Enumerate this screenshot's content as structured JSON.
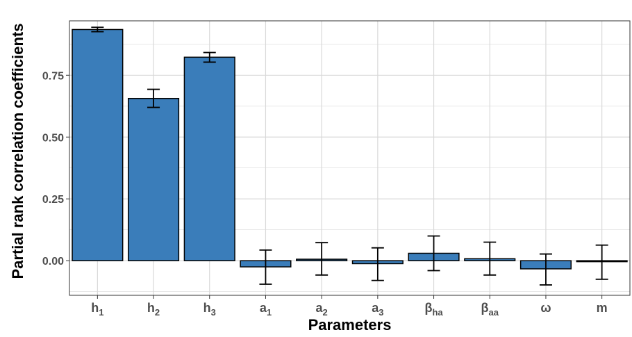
{
  "chart_data": {
    "type": "bar",
    "xlabel": "Parameters",
    "ylabel": "Partial rank correlation coefficients",
    "ylim": [
      -0.14,
      0.97
    ],
    "yticks": [
      "0.00",
      "0.25",
      "0.50",
      "0.75"
    ],
    "ytick_values": [
      0.0,
      0.25,
      0.5,
      0.75
    ],
    "grid": true,
    "categories": [
      {
        "base": "h",
        "sub": "1",
        "bold": true
      },
      {
        "base": "h",
        "sub": "2",
        "bold": true
      },
      {
        "base": "h",
        "sub": "3",
        "bold": true
      },
      {
        "base": "a",
        "sub": "1",
        "bold": true
      },
      {
        "base": "a",
        "sub": "2",
        "bold": true
      },
      {
        "base": "a",
        "sub": "3",
        "bold": true
      },
      {
        "base": "β",
        "sub": "ha",
        "bold": false
      },
      {
        "base": "β",
        "sub": "aa",
        "bold": false
      },
      {
        "base": "ω",
        "sub": "",
        "bold": false
      },
      {
        "base": "m",
        "sub": "",
        "bold": true
      }
    ],
    "values": [
      0.935,
      0.656,
      0.823,
      -0.025,
      0.006,
      -0.012,
      0.03,
      0.008,
      -0.033,
      -0.004
    ],
    "error_low": [
      0.926,
      0.62,
      0.803,
      -0.095,
      -0.058,
      -0.08,
      -0.04,
      -0.058,
      -0.098,
      -0.075
    ],
    "error_high": [
      0.944,
      0.693,
      0.842,
      0.043,
      0.073,
      0.052,
      0.1,
      0.075,
      0.027,
      0.063
    ],
    "bar_color": "#3a7dba",
    "bar_edge_color": "#000000",
    "grid_color": "#d9d9d9"
  }
}
